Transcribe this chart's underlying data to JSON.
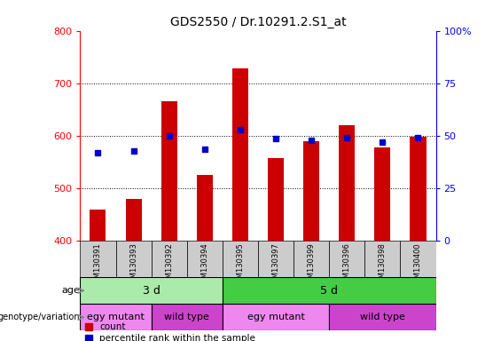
{
  "title": "GDS2550 / Dr.10291.2.S1_at",
  "samples": [
    "GSM130391",
    "GSM130393",
    "GSM130392",
    "GSM130394",
    "GSM130395",
    "GSM130397",
    "GSM130399",
    "GSM130396",
    "GSM130398",
    "GSM130400"
  ],
  "counts": [
    460,
    480,
    665,
    525,
    728,
    558,
    590,
    620,
    578,
    598
  ],
  "percentile_ranks": [
    567,
    572,
    600,
    574,
    612,
    595,
    592,
    597,
    588,
    597
  ],
  "ymin": 400,
  "ymax": 800,
  "yticks": [
    400,
    500,
    600,
    700,
    800
  ],
  "y2min": 0,
  "y2max": 100,
  "y2ticks": [
    0,
    25,
    50,
    75,
    100
  ],
  "y2ticklabels": [
    "0",
    "25",
    "50",
    "75",
    "100%"
  ],
  "bar_color": "#cc0000",
  "dot_color": "#0000cc",
  "age_groups": [
    {
      "label": "3 d",
      "start": 0,
      "end": 4,
      "color": "#aaeaaa"
    },
    {
      "label": "5 d",
      "start": 4,
      "end": 10,
      "color": "#44cc44"
    }
  ],
  "genotype_groups": [
    {
      "label": "egy mutant",
      "start": 0,
      "end": 2,
      "color": "#ee88ee"
    },
    {
      "label": "wild type",
      "start": 2,
      "end": 4,
      "color": "#cc44cc"
    },
    {
      "label": "egy mutant",
      "start": 4,
      "end": 7,
      "color": "#ee88ee"
    },
    {
      "label": "wild type",
      "start": 7,
      "end": 10,
      "color": "#cc44cc"
    }
  ],
  "legend_items": [
    {
      "label": "count",
      "color": "#cc0000"
    },
    {
      "label": "percentile rank within the sample",
      "color": "#0000cc"
    }
  ],
  "bar_width": 0.45,
  "background_color": "#ffffff",
  "sample_bg_color": "#cccccc",
  "title_fontsize": 10
}
